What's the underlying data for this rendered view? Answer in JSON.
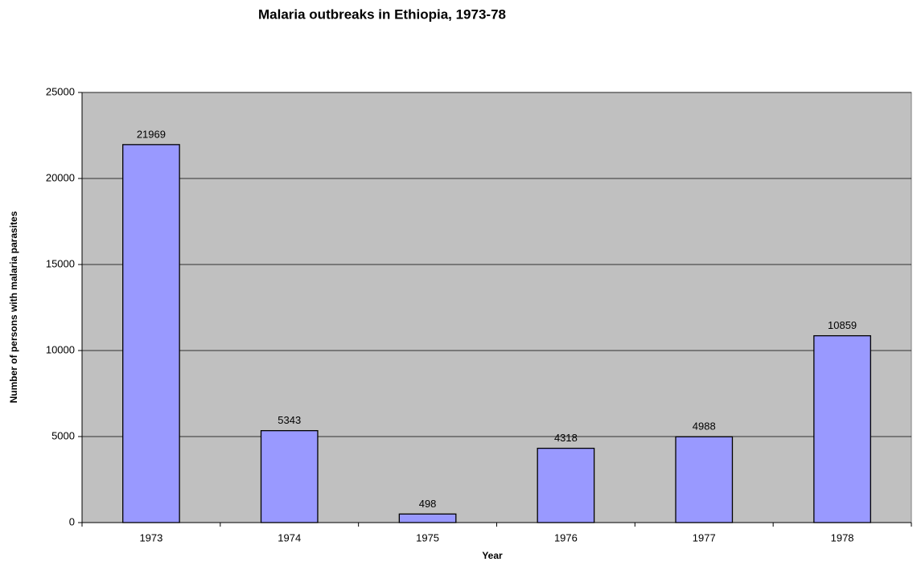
{
  "chart_data": {
    "type": "bar",
    "title": "Malaria outbreaks in Ethiopia, 1973-78",
    "x_label": "Year",
    "y_label": "Number of persons with malaria parasites",
    "categories": [
      "1973",
      "1974",
      "1975",
      "1976",
      "1977",
      "1978"
    ],
    "values": [
      21969,
      5343,
      498,
      4318,
      4988,
      10859
    ],
    "color": "#9999ff",
    "background": "#c0c0c0",
    "ylim": [
      0,
      25000
    ],
    "yticks": [
      0,
      5000,
      10000,
      15000,
      20000,
      25000
    ],
    "grid": true
  }
}
